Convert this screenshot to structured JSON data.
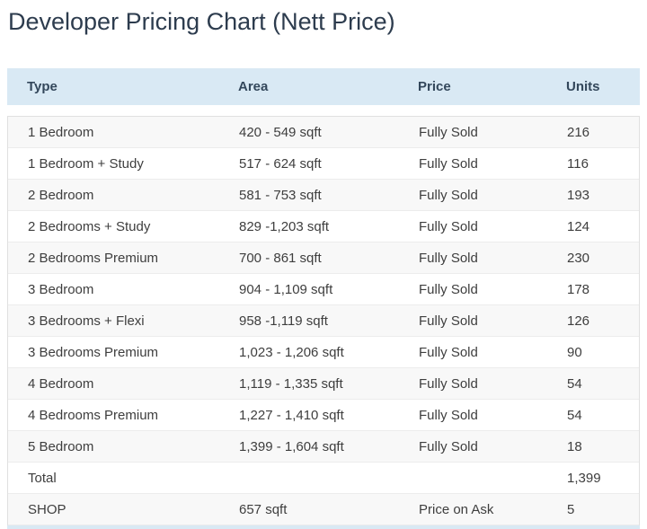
{
  "page": {
    "title": "Developer Pricing Chart (Nett Price)"
  },
  "colors": {
    "header_bg": "#d9e9f4",
    "header_text": "#33475b",
    "row_alt_bg": "#f8f8f8",
    "body_text": "#3e3e3e",
    "title_text": "#2d3c4e",
    "border": "#e0e0e0"
  },
  "table": {
    "columns": [
      {
        "key": "type",
        "label": "Type"
      },
      {
        "key": "area",
        "label": "Area"
      },
      {
        "key": "price",
        "label": "Price"
      },
      {
        "key": "units",
        "label": "Units"
      }
    ],
    "rows": [
      {
        "type": "1 Bedroom",
        "area": "420 - 549 sqft",
        "price": "Fully Sold",
        "units": "216"
      },
      {
        "type": "1 Bedroom + Study",
        "area": "517 - 624 sqft",
        "price": "Fully Sold",
        "units": "116"
      },
      {
        "type": "2 Bedroom",
        "area": "581 - 753 sqft",
        "price": "Fully Sold",
        "units": "193"
      },
      {
        "type": "2 Bedrooms + Study",
        "area": "829 -1,203 sqft",
        "price": "Fully Sold",
        "units": "124"
      },
      {
        "type": "2 Bedrooms Premium",
        "area": "700 - 861 sqft",
        "price": "Fully Sold",
        "units": "230"
      },
      {
        "type": "3 Bedroom",
        "area": "904 - 1,109 sqft",
        "price": "Fully Sold",
        "units": "178"
      },
      {
        "type": "3 Bedrooms + Flexi",
        "area": "958 -1,119 sqft",
        "price": "Fully Sold",
        "units": "126"
      },
      {
        "type": "3 Bedrooms Premium",
        "area": "1,023 - 1,206 sqft",
        "price": "Fully Sold",
        "units": "90"
      },
      {
        "type": "4 Bedroom",
        "area": "1,119 - 1,335 sqft",
        "price": "Fully Sold",
        "units": "54"
      },
      {
        "type": "4 Bedrooms Premium",
        "area": "1,227 - 1,410 sqft",
        "price": "Fully Sold",
        "units": "54"
      },
      {
        "type": "5 Bedroom",
        "area": "1,399 - 1,604 sqft",
        "price": "Fully Sold",
        "units": "18"
      },
      {
        "type": "Total",
        "area": "",
        "price": "",
        "units": "1,399"
      },
      {
        "type": "SHOP",
        "area": "657 sqft",
        "price": "Price on Ask",
        "units": "5"
      }
    ]
  }
}
